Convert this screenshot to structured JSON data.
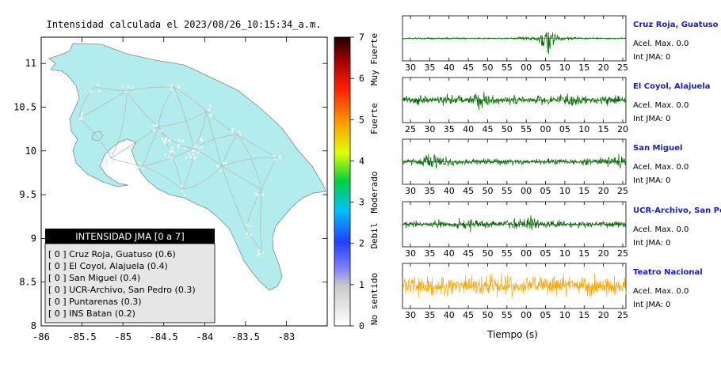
{
  "map": {
    "title": "Intensidad calculada el 2023/08/26_10:15:34_a.m.",
    "x_ticks": [
      "-86",
      "-85.5",
      "-85",
      "-84.5",
      "-84",
      "-83.5",
      "-83"
    ],
    "y_ticks": [
      "8",
      "8.5",
      "9",
      "9.5",
      "10",
      "10.5",
      "11"
    ],
    "land_color": "#b3eced",
    "legend": {
      "title": "INTENSIDAD JMA [0 a 7]",
      "items": [
        "[ 0 ]  Cruz Roja, Guatuso (0.6)",
        "[ 0 ]  El Coyol, Alajuela (0.4)",
        "[ 0 ]  San Miguel (0.4)",
        "[ 0 ]  UCR-Archivo, San Pedro (0.3)",
        "[ 0 ]  Puntarenas (0.3)",
        "[ 0 ]  INS Batan (0.2)"
      ]
    }
  },
  "colorbar": {
    "ticks": [
      "0",
      "1",
      "2",
      "3",
      "4",
      "5",
      "6",
      "7"
    ],
    "labels": [
      "No sentido",
      "Debil",
      "Moderado",
      "Fuerte",
      "Muy Fuerte"
    ]
  },
  "stations": [
    {
      "name": "Cruz Roja, Guatuso",
      "acel": "Acel. Max. 0.0",
      "jma": "Int JMA: 0",
      "ticks": [
        "30",
        "35",
        "40",
        "45",
        "50",
        "55",
        "00",
        "05",
        "10",
        "15",
        "20",
        "25"
      ],
      "color": "#006600"
    },
    {
      "name": "El Coyol, Alajuela",
      "acel": "Acel. Max. 0.0",
      "jma": "Int JMA: 0",
      "ticks": [
        "25",
        "30",
        "35",
        "40",
        "45",
        "50",
        "55",
        "00",
        "05",
        "10",
        "15",
        "20"
      ],
      "color": "#006600"
    },
    {
      "name": "San Miguel",
      "acel": "Acel. Max. 0.0",
      "jma": "Int JMA: 0",
      "ticks": [
        "30",
        "35",
        "40",
        "45",
        "50",
        "55",
        "00",
        "05",
        "10",
        "15",
        "20",
        "25"
      ],
      "color": "#006600"
    },
    {
      "name": "UCR-Archivo, San Pedro",
      "acel": "Acel. Max. 0.0",
      "jma": "Int JMA: 0",
      "ticks": [
        "30",
        "35",
        "40",
        "45",
        "50",
        "55",
        "00",
        "05",
        "10",
        "15",
        "20",
        "25"
      ],
      "color": "#006600"
    },
    {
      "name": "Teatro Nacional",
      "acel": "Acel. Max. 0.0",
      "jma": "Int JMA: 0",
      "ticks": [
        "30",
        "35",
        "40",
        "45",
        "50",
        "55",
        "00",
        "05",
        "10",
        "15",
        "20",
        "25"
      ],
      "color": "#ffa500"
    }
  ],
  "xlabel": "Tiempo (s)",
  "chart_data": [
    {
      "type": "scatter",
      "title": "Intensidad calculada el 2023/08/26_10:15:34_a.m.",
      "xlim": [
        -86,
        -82.5
      ],
      "ylim": [
        8,
        11.3
      ],
      "colorbar_range": [
        0,
        7
      ],
      "colorbar_classes": [
        "No sentido",
        "Debil",
        "Moderado",
        "Fuerte",
        "Muy Fuerte"
      ],
      "stations": [
        {
          "name": "Cruz Roja, Guatuso",
          "intensity": 0.6
        },
        {
          "name": "El Coyol, Alajuela",
          "intensity": 0.4
        },
        {
          "name": "San Miguel",
          "intensity": 0.4
        },
        {
          "name": "UCR-Archivo, San Pedro",
          "intensity": 0.3
        },
        {
          "name": "Puntarenas",
          "intensity": 0.3
        },
        {
          "name": "INS Batan",
          "intensity": 0.2
        }
      ]
    },
    {
      "type": "line",
      "xlabel": "Tiempo (s)",
      "series": [
        {
          "name": "Cruz Roja, Guatuso",
          "peak_acel": 0.0,
          "jma": 0
        },
        {
          "name": "El Coyol, Alajuela",
          "peak_acel": 0.0,
          "jma": 0
        },
        {
          "name": "San Miguel",
          "peak_acel": 0.0,
          "jma": 0
        },
        {
          "name": "UCR-Archivo, San Pedro",
          "peak_acel": 0.0,
          "jma": 0
        },
        {
          "name": "Teatro Nacional",
          "peak_acel": 0.0,
          "jma": 0
        }
      ]
    }
  ]
}
